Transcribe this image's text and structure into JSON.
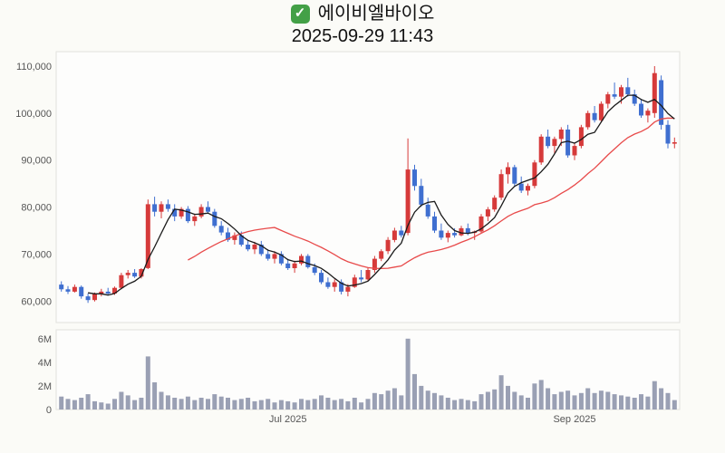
{
  "header": {
    "check_glyph": "✓",
    "title": "에이비엘바이오",
    "datetime": "2025-09-29 11:43"
  },
  "chart_data": {
    "type": "candlestick",
    "title": "에이비엘바이오",
    "subtitle": "2025-09-29 11:43",
    "price_unit": "KRW x1000",
    "volume_unit": "shares x1M",
    "price_range": [
      56,
      112.5
    ],
    "price_ticks": [
      {
        "v": 60,
        "label": "60,000"
      },
      {
        "v": 70,
        "label": "70,000"
      },
      {
        "v": 80,
        "label": "80,000"
      },
      {
        "v": 90,
        "label": "90,000"
      },
      {
        "v": 100,
        "label": "100,000"
      },
      {
        "v": 110,
        "label": "110,000"
      }
    ],
    "volume_range": [
      0,
      6.6
    ],
    "volume_ticks": [
      {
        "v": 0,
        "label": "0"
      },
      {
        "v": 2,
        "label": "2M"
      },
      {
        "v": 4,
        "label": "4M"
      },
      {
        "v": 6,
        "label": "6M"
      }
    ],
    "x_labels": [
      {
        "label": "Jul 2025",
        "index": 34
      },
      {
        "label": "Sep 2025",
        "index": 77
      }
    ],
    "colors": {
      "up": "#d63a3a",
      "down": "#3f6fd0",
      "ma_fast": "#1a1a1a",
      "ma_slow": "#e84a4a",
      "volume": "#9aa0b4",
      "panel": "#fdfdfc",
      "panel_border": "#e1e1dd"
    },
    "ma_periods": {
      "fast": 5,
      "slow": 20
    },
    "candles": [
      [
        63.5,
        64.2,
        62.0,
        62.5,
        1.1
      ],
      [
        62.5,
        63.2,
        61.5,
        62.0,
        0.9
      ],
      [
        62.0,
        63.5,
        61.8,
        63.0,
        0.8
      ],
      [
        63.0,
        63.3,
        60.5,
        61.0,
        1.0
      ],
      [
        61.0,
        61.6,
        59.6,
        60.2,
        1.3
      ],
      [
        60.2,
        61.8,
        59.9,
        61.5,
        0.7
      ],
      [
        61.5,
        62.6,
        61.0,
        62.0,
        0.6
      ],
      [
        62.0,
        62.8,
        61.2,
        61.6,
        0.5
      ],
      [
        61.6,
        63.1,
        61.3,
        62.8,
        0.9
      ],
      [
        62.8,
        66.0,
        62.5,
        65.5,
        1.5
      ],
      [
        65.5,
        66.6,
        64.8,
        66.0,
        1.2
      ],
      [
        66.0,
        66.8,
        64.9,
        65.2,
        0.8
      ],
      [
        65.2,
        67.0,
        64.8,
        66.8,
        1.0
      ],
      [
        67.0,
        81.6,
        66.8,
        80.6,
        4.5
      ],
      [
        80.6,
        82.2,
        78.0,
        79.0,
        2.3
      ],
      [
        79.0,
        81.2,
        77.6,
        80.6,
        1.5
      ],
      [
        80.6,
        81.6,
        79.0,
        79.6,
        1.2
      ],
      [
        79.6,
        80.6,
        77.0,
        78.0,
        1.0
      ],
      [
        78.0,
        80.0,
        77.5,
        79.6,
        0.9
      ],
      [
        79.6,
        80.2,
        76.6,
        77.0,
        1.1
      ],
      [
        77.0,
        78.6,
        76.0,
        78.0,
        0.8
      ],
      [
        78.0,
        80.6,
        77.6,
        80.0,
        1.0
      ],
      [
        80.0,
        81.2,
        78.6,
        79.0,
        0.9
      ],
      [
        79.0,
        79.6,
        75.6,
        76.0,
        1.3
      ],
      [
        76.0,
        77.0,
        74.0,
        74.6,
        1.1
      ],
      [
        74.6,
        75.6,
        72.6,
        73.0,
        1.0
      ],
      [
        73.0,
        74.6,
        72.0,
        74.0,
        0.8
      ],
      [
        74.0,
        74.8,
        71.6,
        72.0,
        0.9
      ],
      [
        72.0,
        73.0,
        70.6,
        71.0,
        1.0
      ],
      [
        71.0,
        72.6,
        70.0,
        72.0,
        0.7
      ],
      [
        72.0,
        72.8,
        69.6,
        70.0,
        0.8
      ],
      [
        70.0,
        71.0,
        68.6,
        69.0,
        0.9
      ],
      [
        69.0,
        70.6,
        68.0,
        70.0,
        0.6
      ],
      [
        70.0,
        70.6,
        67.6,
        68.0,
        0.8
      ],
      [
        68.0,
        69.0,
        66.6,
        67.0,
        0.7
      ],
      [
        67.0,
        68.6,
        66.0,
        68.0,
        0.6
      ],
      [
        68.0,
        70.0,
        67.6,
        69.6,
        0.9
      ],
      [
        69.6,
        70.0,
        66.9,
        67.2,
        0.8
      ],
      [
        67.2,
        68.0,
        65.5,
        66.0,
        0.9
      ],
      [
        66.0,
        66.6,
        63.6,
        64.0,
        1.2
      ],
      [
        64.0,
        65.0,
        62.6,
        63.0,
        1.0
      ],
      [
        63.0,
        64.6,
        62.0,
        64.0,
        0.8
      ],
      [
        64.0,
        64.6,
        61.4,
        62.0,
        0.9
      ],
      [
        62.0,
        63.6,
        61.0,
        63.0,
        0.7
      ],
      [
        63.0,
        65.6,
        62.8,
        65.0,
        1.0
      ],
      [
        65.0,
        66.6,
        64.0,
        64.6,
        0.6
      ],
      [
        64.6,
        67.0,
        64.2,
        66.6,
        0.9
      ],
      [
        66.6,
        69.6,
        66.0,
        69.0,
        1.4
      ],
      [
        69.0,
        71.0,
        68.5,
        70.6,
        1.3
      ],
      [
        70.6,
        73.6,
        70.0,
        73.0,
        1.6
      ],
      [
        73.0,
        75.6,
        72.5,
        75.0,
        1.8
      ],
      [
        75.0,
        76.0,
        73.5,
        74.0,
        1.2
      ],
      [
        74.5,
        94.6,
        74.0,
        88.0,
        6.0
      ],
      [
        88.0,
        89.0,
        83.5,
        84.5,
        3.0
      ],
      [
        84.5,
        86.0,
        80.0,
        80.5,
        2.0
      ],
      [
        80.5,
        82.0,
        77.5,
        78.0,
        1.6
      ],
      [
        78.0,
        79.0,
        74.5,
        75.0,
        1.4
      ],
      [
        75.0,
        76.5,
        73.0,
        73.5,
        1.2
      ],
      [
        73.5,
        75.0,
        72.5,
        74.5,
        1.0
      ],
      [
        74.5,
        75.5,
        73.5,
        74.0,
        0.8
      ],
      [
        74.0,
        76.0,
        73.8,
        75.5,
        0.9
      ],
      [
        75.5,
        76.5,
        74.0,
        74.5,
        0.8
      ],
      [
        74.5,
        75.0,
        73.0,
        74.8,
        0.7
      ],
      [
        74.8,
        78.5,
        74.5,
        78.0,
        1.3
      ],
      [
        78.0,
        80.0,
        77.0,
        79.5,
        1.5
      ],
      [
        79.5,
        82.5,
        79.0,
        82.0,
        1.7
      ],
      [
        82.0,
        88.0,
        81.5,
        87.0,
        2.9
      ],
      [
        87.0,
        89.5,
        85.0,
        88.5,
        2.0
      ],
      [
        88.5,
        89.0,
        84.5,
        85.0,
        1.5
      ],
      [
        85.0,
        86.5,
        83.0,
        83.5,
        1.2
      ],
      [
        83.5,
        85.0,
        82.5,
        84.5,
        1.0
      ],
      [
        84.5,
        90.0,
        84.0,
        89.5,
        2.2
      ],
      [
        89.5,
        95.5,
        89.0,
        95.0,
        2.5
      ],
      [
        95.0,
        96.5,
        92.5,
        93.0,
        1.8
      ],
      [
        93.0,
        95.0,
        91.5,
        94.5,
        1.3
      ],
      [
        94.5,
        97.0,
        93.0,
        96.5,
        1.5
      ],
      [
        96.5,
        97.5,
        90.5,
        91.0,
        1.6
      ],
      [
        91.0,
        93.5,
        90.0,
        93.0,
        1.2
      ],
      [
        93.0,
        97.5,
        92.5,
        97.0,
        1.4
      ],
      [
        97.0,
        100.5,
        96.5,
        100.0,
        1.8
      ],
      [
        100.0,
        101.5,
        98.0,
        98.5,
        1.4
      ],
      [
        98.5,
        102.5,
        98.0,
        102.0,
        1.6
      ],
      [
        102.0,
        104.5,
        101.0,
        104.0,
        1.5
      ],
      [
        104.0,
        106.5,
        103.0,
        103.5,
        1.3
      ],
      [
        103.5,
        106.0,
        102.0,
        105.5,
        1.2
      ],
      [
        105.5,
        107.5,
        103.5,
        104.0,
        1.1
      ],
      [
        104.0,
        105.0,
        101.5,
        102.0,
        1.0
      ],
      [
        102.0,
        103.0,
        99.0,
        99.5,
        1.3
      ],
      [
        99.5,
        101.0,
        98.0,
        100.5,
        1.1
      ],
      [
        100.0,
        110.0,
        99.0,
        108.5,
        2.4
      ],
      [
        107.0,
        108.0,
        96.5,
        97.5,
        1.8
      ],
      [
        97.5,
        98.5,
        92.5,
        93.5,
        1.4
      ],
      [
        93.5,
        94.8,
        92.5,
        93.8,
        0.8
      ]
    ]
  }
}
